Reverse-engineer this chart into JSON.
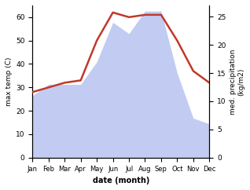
{
  "months": [
    "Jan",
    "Feb",
    "Mar",
    "Apr",
    "May",
    "Jun",
    "Jul",
    "Aug",
    "Sep",
    "Oct",
    "Nov",
    "Dec"
  ],
  "temp": [
    28,
    30,
    32,
    33,
    50,
    62,
    60,
    61,
    61,
    50,
    37,
    32
  ],
  "precip": [
    11,
    13,
    13,
    13,
    17,
    24,
    22,
    26,
    26,
    15,
    7,
    6
  ],
  "temp_color": "#c0392b",
  "precip_color": "#b8c4f0",
  "ylabel_left": "max temp (C)",
  "ylabel_right": "med. precipitation\n(kg/m2)",
  "xlabel": "date (month)",
  "ylim_left": [
    0,
    65
  ],
  "ylim_right": [
    0,
    27
  ],
  "yticks_left": [
    0,
    10,
    20,
    30,
    40,
    50,
    60
  ],
  "yticks_right": [
    0,
    5,
    10,
    15,
    20,
    25
  ],
  "temp_linewidth": 1.8
}
